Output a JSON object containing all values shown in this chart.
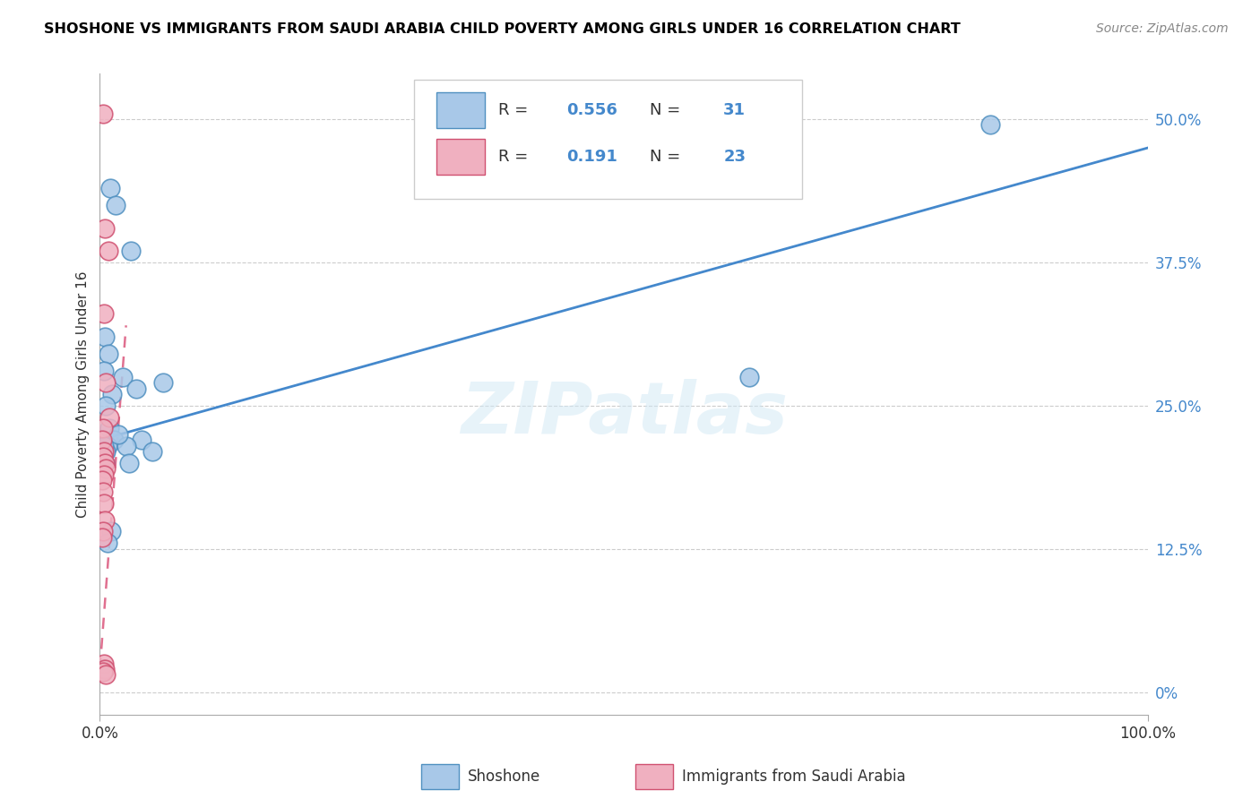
{
  "title": "SHOSHONE VS IMMIGRANTS FROM SAUDI ARABIA CHILD POVERTY AMONG GIRLS UNDER 16 CORRELATION CHART",
  "source": "Source: ZipAtlas.com",
  "ylabel": "Child Poverty Among Girls Under 16",
  "y_tick_values": [
    0,
    12.5,
    25.0,
    37.5,
    50.0
  ],
  "y_tick_labels": [
    "0%",
    "12.5%",
    "25.0%",
    "37.5%",
    "50.0%"
  ],
  "xlim": [
    0,
    100
  ],
  "ylim": [
    -2,
    54
  ],
  "shoshone_r": "0.556",
  "shoshone_n": "31",
  "saudi_r": "0.191",
  "saudi_n": "23",
  "blue_scatter_color": "#a8c8e8",
  "blue_edge_color": "#5090c0",
  "pink_scatter_color": "#f0b0c0",
  "pink_edge_color": "#d05070",
  "blue_line_color": "#4488cc",
  "pink_line_color": "#e07090",
  "legend_label_1": "Shoshone",
  "legend_label_2": "Immigrants from Saudi Arabia",
  "watermark": "ZIPatlas",
  "shoshone_x": [
    1.0,
    1.5,
    3.0,
    0.5,
    0.8,
    0.4,
    1.2,
    0.6,
    0.9,
    1.3,
    0.7,
    0.5,
    0.3,
    0.4,
    2.2,
    4.0,
    6.0,
    3.5,
    2.5,
    1.8,
    0.6,
    0.5,
    0.4,
    5.0,
    62.0,
    85.0,
    0.3,
    1.1,
    0.7,
    2.8,
    0.4
  ],
  "shoshone_y": [
    44.0,
    42.5,
    38.5,
    31.0,
    29.5,
    28.0,
    26.0,
    25.0,
    23.0,
    22.0,
    21.5,
    21.0,
    20.5,
    20.0,
    27.5,
    22.0,
    27.0,
    26.5,
    21.5,
    22.5,
    21.0,
    20.0,
    21.5,
    21.0,
    27.5,
    49.5,
    20.5,
    14.0,
    13.0,
    20.0,
    2.0
  ],
  "saudi_x": [
    0.3,
    0.5,
    0.8,
    0.4,
    0.6,
    0.9,
    0.3,
    0.2,
    0.4,
    0.3,
    0.5,
    0.6,
    0.4,
    0.2,
    0.3,
    0.4,
    0.5,
    0.3,
    0.2,
    0.4,
    0.5,
    0.3,
    0.6
  ],
  "saudi_y": [
    50.5,
    40.5,
    38.5,
    33.0,
    27.0,
    24.0,
    23.0,
    22.0,
    21.0,
    20.5,
    20.0,
    19.5,
    19.0,
    18.5,
    17.5,
    16.5,
    15.0,
    14.0,
    13.5,
    2.5,
    2.0,
    1.8,
    1.5
  ],
  "background_color": "#ffffff",
  "grid_color": "#cccccc",
  "blue_trendline_x0": 0,
  "blue_trendline_y0": 22.0,
  "blue_trendline_x1": 100,
  "blue_trendline_y1": 47.5,
  "pink_trendline_x0": 0.0,
  "pink_trendline_y0": 2.0,
  "pink_trendline_x1": 2.5,
  "pink_trendline_y1": 32.0
}
